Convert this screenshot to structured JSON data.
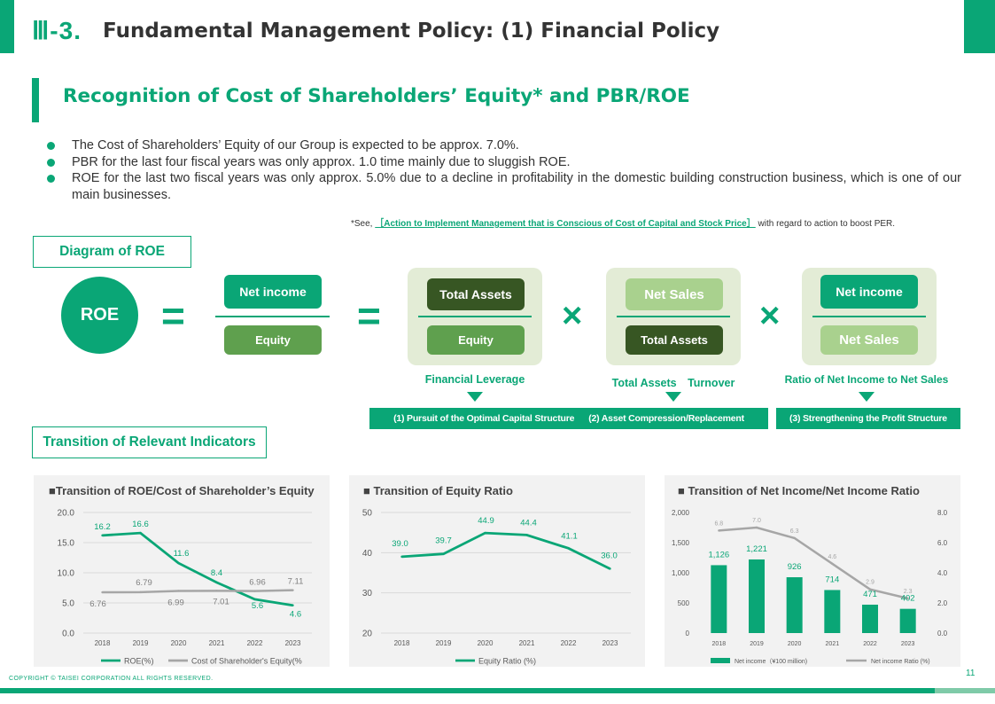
{
  "header": {
    "section_number": "Ⅲ-3.",
    "title": "Fundamental Management Policy: (1) Financial Policy"
  },
  "subtitle": "Recognition of Cost of Shareholders’ Equity* and PBR/ROE",
  "bullets": [
    "The Cost of Shareholders’ Equity of our Group is expected to be approx. 7.0%.",
    "PBR for the last four fiscal years was only approx. 1.0 time mainly due to sluggish ROE.",
    "ROE for the last two fiscal years was only approx. 5.0% due to a decline in profitability in the domestic building construction business, which is one of our main businesses."
  ],
  "note": {
    "prefix": "*See, ",
    "link": "［Action to Implement Management that is Conscious of Cost of Capital and Stock Price］",
    "suffix": " with regard to action to boost PER."
  },
  "diagram": {
    "section_label": "Diagram of ROE",
    "roe": "ROE",
    "eq_sign": "=",
    "times_sign": "×",
    "frac1": {
      "num": "Net income",
      "den": "Equity"
    },
    "frac2": {
      "num": "Total Assets",
      "den": "Equity",
      "caption": "Financial Leverage"
    },
    "frac3": {
      "num": "Net Sales",
      "den": "Total Assets",
      "caption": "Total Assets　Turnover"
    },
    "frac4": {
      "num": "Net income",
      "den": "Net Sales",
      "caption": "Ratio of Net Income to Net Sales"
    },
    "initiatives": [
      "(1) Pursuit of the Optimal Capital Structure",
      "(2) Asset Compression/Replacement",
      "(3) Strengthening the Profit Structure"
    ],
    "colors": {
      "accent": "#0aa676",
      "dark": "#375623",
      "mid": "#5fa04e",
      "light": "#a9d18e",
      "panel_bg": "#e3ecd6"
    }
  },
  "indicators_label": "Transition of Relevant Indicators",
  "chart_data": [
    {
      "type": "line",
      "title": "■Transition of ROE/Cost  of Shareholder’s Equity",
      "x": [
        "2018",
        "2019",
        "2020",
        "2021",
        "2022",
        "2023"
      ],
      "ylim": [
        0,
        20
      ],
      "yticks": [
        "0.0",
        "5.0",
        "10.0",
        "15.0",
        "20.0"
      ],
      "grid": true,
      "legend_position": "bottom",
      "series": [
        {
          "name": "ROE(%)",
          "values": [
            16.2,
            16.6,
            11.6,
            8.4,
            5.6,
            4.6
          ],
          "labels": [
            "16.2",
            "16.6",
            "11.6",
            "8.4",
            "5.6",
            "4.6"
          ],
          "color": "#0aa676"
        },
        {
          "name": "Cost of Shareholder's Equity(%",
          "values": [
            6.76,
            6.79,
            6.99,
            7.01,
            6.96,
            7.11
          ],
          "labels": [
            "6.76",
            "6.79",
            "6.99",
            "7.01",
            "6.96",
            "7.11"
          ],
          "color": "#a6a6a6"
        }
      ]
    },
    {
      "type": "line",
      "title": "■ Transition of Equity Ratio",
      "x": [
        "2018",
        "2019",
        "2020",
        "2021",
        "2022",
        "2023"
      ],
      "ylim": [
        20,
        50
      ],
      "yticks": [
        "20",
        "30",
        "40",
        "50"
      ],
      "grid": true,
      "legend_position": "bottom",
      "series": [
        {
          "name": "Equity Ratio (%)",
          "values": [
            39.0,
            39.7,
            44.9,
            44.4,
            41.1,
            36.0
          ],
          "labels": [
            "39.0",
            "39.7",
            "44.9",
            "44.4",
            "41.1",
            "36.0"
          ],
          "color": "#0aa676"
        }
      ]
    },
    {
      "type": "bar",
      "title": "■ Transition of Net Income/Net Income Ratio",
      "categories": [
        "2018",
        "2019",
        "2020",
        "2021",
        "2022",
        "2023"
      ],
      "ylim": [
        0,
        2000
      ],
      "yticks": [
        "0",
        "500",
        "1,000",
        "1,500",
        "2,000"
      ],
      "y2lim": [
        0,
        8
      ],
      "y2ticks": [
        "0.0",
        "2.0",
        "4.0",
        "6.0",
        "8.0"
      ],
      "grid": false,
      "legend_position": "bottom",
      "series": [
        {
          "name": "Net income（¥100 million)",
          "kind": "bar",
          "values": [
            1126,
            1221,
            926,
            714,
            471,
            402
          ],
          "labels": [
            "1,126",
            "1,221",
            "926",
            "714",
            "471",
            "402"
          ],
          "color": "#0aa676"
        },
        {
          "name": "Net income Ratio (%)",
          "kind": "line",
          "axis": "right",
          "values": [
            6.8,
            7.0,
            6.3,
            4.6,
            2.9,
            2.3
          ],
          "labels": [
            "6.8",
            "7.0",
            "6.3",
            "4.6",
            "2.9",
            "2.3"
          ],
          "color": "#a6a6a6"
        }
      ]
    }
  ],
  "footer": {
    "copyright": "COPYRIGHT © TAISEI CORPORATION ALL RIGHTS RESERVED.",
    "page": "11"
  }
}
